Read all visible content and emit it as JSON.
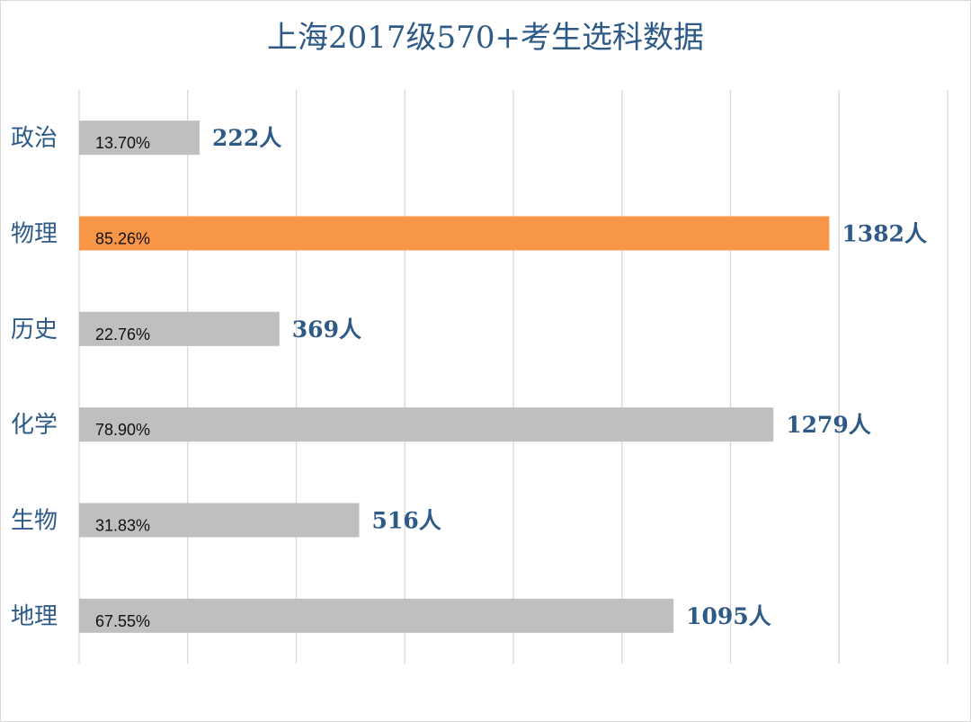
{
  "chart_data": {
    "type": "bar",
    "orientation": "horizontal",
    "title": "上海2017级570+考生选科数据",
    "categories": [
      "政治",
      "物理",
      "历史",
      "化学",
      "生物",
      "地理"
    ],
    "values": [
      222,
      1382,
      369,
      1279,
      516,
      1095
    ],
    "value_labels": [
      "222人",
      "1382人",
      "369人",
      "1279人",
      "516人",
      "1095人"
    ],
    "percent_labels": [
      "13.70%",
      "85.26%",
      "22.76%",
      "78.90%",
      "31.83%",
      "67.55%"
    ],
    "highlight_index": 1,
    "xlim": [
      0,
      1600
    ],
    "grid": true,
    "legend": "none",
    "colors": {
      "bar": "#bfbfbf",
      "highlight": "#f79646",
      "text": "#2e5a87",
      "grid": "#d9d9d9"
    }
  }
}
